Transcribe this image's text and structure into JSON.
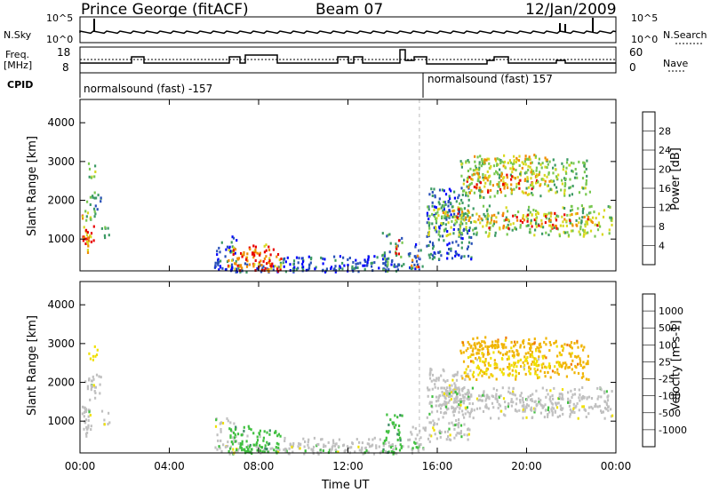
{
  "header": {
    "station": "Prince George (fitACF)",
    "beam": "Beam 07",
    "date": "12/Jan/2009"
  },
  "top_panels": {
    "sky_label": "N.Sky",
    "sky_ticks": [
      "10^5",
      "10^0"
    ],
    "search_label": "N.Search",
    "search_ticks": [
      "10^5",
      "10^0"
    ],
    "freq_label_1": "Freq.",
    "freq_label_2": "[MHz]",
    "freq_ticks": [
      "18",
      "8"
    ],
    "nave_label": "Nave",
    "nave_ticks": [
      "60",
      "0"
    ],
    "cpid_label": "CPID",
    "cpid_segments": [
      "normalsound (fast) -157",
      "normalsound (fast) 157"
    ]
  },
  "chart_data": [
    {
      "type": "heatmap",
      "title": "",
      "ylabel": "Slant Range [km]",
      "xlabel": "",
      "ylim": [
        180,
        4600
      ],
      "yticks": [
        "1000",
        "2000",
        "3000",
        "4000"
      ],
      "colorbar_label": "Power [dB]",
      "colorbar_ticks": [
        "28",
        "24",
        "20",
        "16",
        "12",
        "8",
        "4"
      ],
      "colorbar_colors": [
        "#0000ff",
        "#2850b8",
        "#3c9a64",
        "#78c850",
        "#d8d820",
        "#f08c00",
        "#e80000"
      ]
    },
    {
      "type": "heatmap",
      "title": "",
      "ylabel": "Slant Range [km]",
      "xlabel": "Time UT",
      "ylim": [
        180,
        4600
      ],
      "yticks": [
        "1000",
        "2000",
        "3000",
        "4000"
      ],
      "colorbar_label": "Velocity [m s-1]",
      "colorbar_ticks": [
        "1000",
        "500",
        "100",
        "25",
        "-25",
        "-100",
        "-500",
        "-1000"
      ],
      "colorbar_colors": [
        "#e80000",
        "#f07800",
        "#f0b400",
        "#f0e000",
        "#c0c0c0",
        "#40c040",
        "#3c8c64",
        "#2850b8",
        "#1820c0"
      ],
      "xticks": [
        "00:00",
        "04:00",
        "08:00",
        "12:00",
        "16:00",
        "20:00",
        "00:00"
      ]
    }
  ]
}
